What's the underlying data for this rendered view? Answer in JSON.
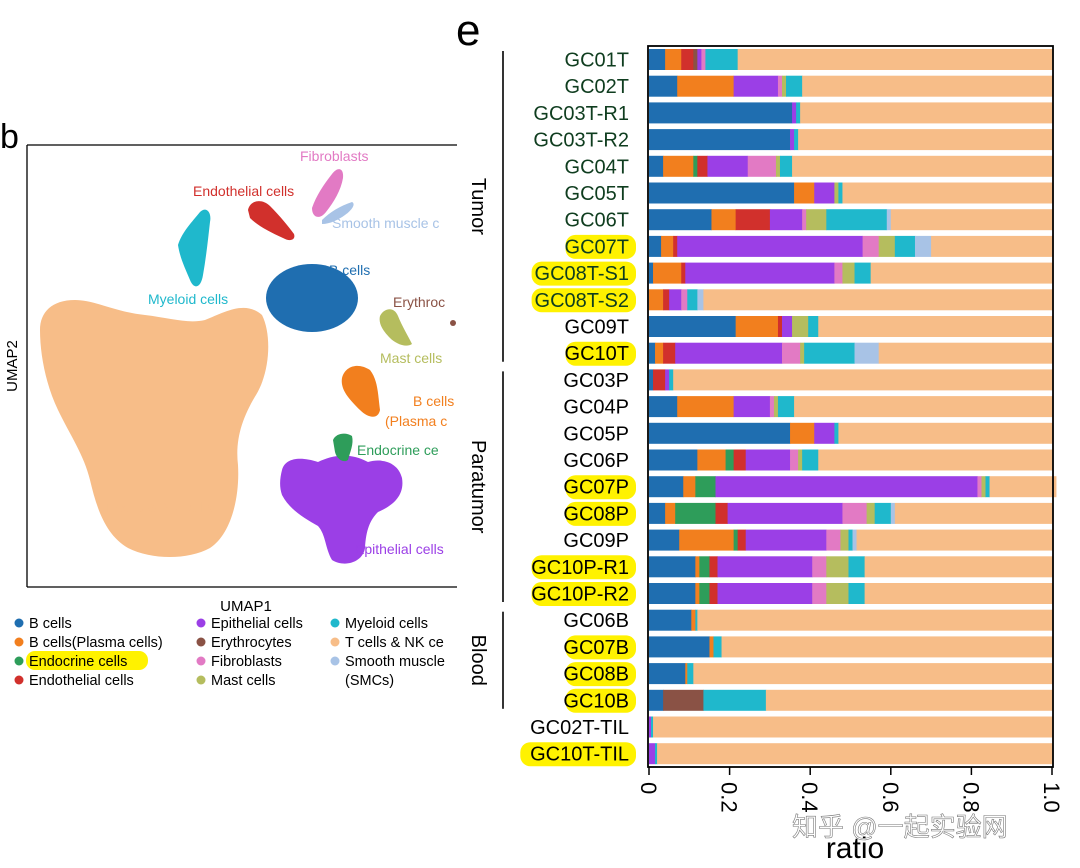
{
  "colors": {
    "b_cells": "#1f6eb0",
    "plasma": "#f27f1e",
    "endocrine": "#2e9d5a",
    "endothelial": "#d1302c",
    "epithelial": "#9b3fe6",
    "erythrocytes": "#8a5245",
    "fibroblasts": "#e27ac4",
    "mast": "#b5bd5e",
    "myeloid": "#1fb8cc",
    "tnk": "#f7bd88",
    "smc": "#a8c3e6",
    "highlight": "#fff200",
    "label_dark_green": "#0f3d1f"
  },
  "panel_d": {
    "label": "b",
    "xlabel": "UMAP1",
    "ylabel": "UMAP2",
    "cluster_labels": {
      "fibroblasts": "Fibroblasts",
      "endothelial": "Endothelial cells",
      "smc": "Smooth muscle c",
      "b_cells": "B cells",
      "myeloid": "Myeloid cells",
      "erythro": "Erythroc",
      "mast": "Mast cells",
      "plasma_1": "B cells",
      "plasma_2": "(Plasma c",
      "endocrine": "Endocrine ce",
      "tnk": "T cells & NK cells",
      "epithelial": "Epithelial cells"
    },
    "legend": [
      {
        "label": "B cells",
        "color": "#1f6eb0"
      },
      {
        "label": "B cells(Plasma cells)",
        "color": "#f27f1e"
      },
      {
        "label": "Endocrine cells",
        "color": "#2e9d5a",
        "highlight": true
      },
      {
        "label": "Endothelial cells",
        "color": "#d1302c"
      },
      {
        "label": "Epithelial cells",
        "color": "#9b3fe6"
      },
      {
        "label": "Erythrocytes",
        "color": "#8a5245"
      },
      {
        "label": "Fibroblasts",
        "color": "#e27ac4"
      },
      {
        "label": "Mast cells",
        "color": "#b5bd5e"
      },
      {
        "label": "Myeloid cells",
        "color": "#1fb8cc"
      },
      {
        "label": "T cells & NK ce",
        "color": "#f7bd88"
      },
      {
        "label": "Smooth muscle",
        "color": "#a8c3e6"
      },
      {
        "label": "(SMCs)",
        "color": null
      }
    ]
  },
  "chart_data": {
    "type": "bar",
    "orientation": "horizontal",
    "stacked": true,
    "panel_label": "e",
    "xlabel": "ratio",
    "xlim": [
      0,
      1.0
    ],
    "xticks": [
      "0",
      "0.2",
      "0.4",
      "0.6",
      "0.8",
      "1.0"
    ],
    "series_order": [
      "B cells",
      "B cells(Plasma cells)",
      "Endocrine cells",
      "Endothelial cells",
      "Erythrocytes",
      "Epithelial cells",
      "Fibroblasts",
      "Mast cells",
      "Myeloid cells",
      "Smooth muscle cells (SMCs)",
      "T cells & NK cells"
    ],
    "groups": [
      {
        "name": "Tumor",
        "first": 0,
        "last": 11
      },
      {
        "name": "Paratumor",
        "first": 12,
        "last": 20
      },
      {
        "name": "Blood",
        "first": 21,
        "last": 24
      }
    ],
    "categories": [
      {
        "label": "GC01T",
        "highlight": false,
        "dark": true,
        "values": [
          0.04,
          0.04,
          0.0,
          0.03,
          0.01,
          0.01,
          0.01,
          0.0,
          0.08,
          0.0,
          0.78
        ]
      },
      {
        "label": "GC02T",
        "highlight": false,
        "dark": true,
        "values": [
          0.07,
          0.14,
          0.0,
          0.0,
          0.0,
          0.11,
          0.01,
          0.01,
          0.04,
          0.0,
          0.62
        ]
      },
      {
        "label": "GC03T-R1",
        "highlight": false,
        "dark": true,
        "values": [
          0.355,
          0.0,
          0.0,
          0.0,
          0.0,
          0.01,
          0.0,
          0.0,
          0.01,
          0.0,
          0.625
        ]
      },
      {
        "label": "GC03T-R2",
        "highlight": false,
        "dark": true,
        "values": [
          0.35,
          0.0,
          0.0,
          0.0,
          0.0,
          0.01,
          0.0,
          0.0,
          0.01,
          0.0,
          0.63
        ]
      },
      {
        "label": "GC04T",
        "highlight": false,
        "dark": true,
        "values": [
          0.035,
          0.075,
          0.01,
          0.025,
          0.0,
          0.1,
          0.07,
          0.01,
          0.03,
          0.0,
          0.645
        ]
      },
      {
        "label": "GC05T",
        "highlight": false,
        "dark": true,
        "values": [
          0.36,
          0.05,
          0.0,
          0.0,
          0.0,
          0.05,
          0.0,
          0.01,
          0.01,
          0.0,
          0.52
        ]
      },
      {
        "label": "GC06T",
        "highlight": false,
        "dark": true,
        "values": [
          0.155,
          0.06,
          0.0,
          0.085,
          0.0,
          0.08,
          0.01,
          0.05,
          0.15,
          0.01,
          0.4
        ]
      },
      {
        "label": "GC07T",
        "highlight": true,
        "dark": true,
        "values": [
          0.03,
          0.03,
          0.0,
          0.01,
          0.0,
          0.46,
          0.04,
          0.04,
          0.05,
          0.04,
          0.3
        ]
      },
      {
        "label": "GC08T-S1",
        "highlight": true,
        "dark": true,
        "values": [
          0.01,
          0.07,
          0.0,
          0.01,
          0.0,
          0.37,
          0.02,
          0.03,
          0.04,
          0.0,
          0.45
        ]
      },
      {
        "label": "GC08T-S2",
        "highlight": true,
        "dark": true,
        "values": [
          0.0,
          0.035,
          0.0,
          0.015,
          0.0,
          0.03,
          0.015,
          0.0,
          0.025,
          0.015,
          0.865
        ]
      },
      {
        "label": "GC09T",
        "highlight": false,
        "dark": false,
        "values": [
          0.215,
          0.105,
          0.0,
          0.01,
          0.0,
          0.025,
          0.0,
          0.04,
          0.025,
          0.0,
          0.58
        ]
      },
      {
        "label": "GC10T",
        "highlight": true,
        "dark": false,
        "values": [
          0.015,
          0.02,
          0.0,
          0.03,
          0.0,
          0.265,
          0.045,
          0.01,
          0.125,
          0.06,
          0.43
        ]
      },
      {
        "label": "GC03P",
        "highlight": false,
        "dark": false,
        "values": [
          0.01,
          0.0,
          0.0,
          0.03,
          0.0,
          0.01,
          0.0,
          0.0,
          0.01,
          0.0,
          0.94
        ]
      },
      {
        "label": "GC04P",
        "highlight": false,
        "dark": false,
        "values": [
          0.07,
          0.14,
          0.0,
          0.0,
          0.0,
          0.09,
          0.01,
          0.01,
          0.04,
          0.0,
          0.64
        ]
      },
      {
        "label": "GC05P",
        "highlight": false,
        "dark": false,
        "values": [
          0.35,
          0.06,
          0.0,
          0.0,
          0.0,
          0.05,
          0.0,
          0.0,
          0.01,
          0.0,
          0.53
        ]
      },
      {
        "label": "GC06P",
        "highlight": false,
        "dark": false,
        "values": [
          0.12,
          0.07,
          0.02,
          0.03,
          0.0,
          0.11,
          0.02,
          0.01,
          0.04,
          0.0,
          0.58
        ]
      },
      {
        "label": "GC07P",
        "highlight": true,
        "dark": false,
        "values": [
          0.085,
          0.03,
          0.05,
          0.0,
          0.0,
          0.65,
          0.01,
          0.01,
          0.01,
          0.0,
          0.165
        ]
      },
      {
        "label": "GC08P",
        "highlight": true,
        "dark": false,
        "values": [
          0.04,
          0.025,
          0.1,
          0.03,
          0.0,
          0.285,
          0.06,
          0.02,
          0.04,
          0.01,
          0.39
        ]
      },
      {
        "label": "GC09P",
        "highlight": false,
        "dark": false,
        "values": [
          0.075,
          0.135,
          0.01,
          0.02,
          0.0,
          0.2,
          0.035,
          0.02,
          0.01,
          0.01,
          0.485
        ]
      },
      {
        "label": "GC10P-R1",
        "highlight": true,
        "dark": false,
        "values": [
          0.115,
          0.01,
          0.025,
          0.02,
          0.0,
          0.235,
          0.035,
          0.055,
          0.04,
          0.0,
          0.465
        ]
      },
      {
        "label": "GC10P-R2",
        "highlight": true,
        "dark": false,
        "values": [
          0.115,
          0.01,
          0.025,
          0.02,
          0.0,
          0.235,
          0.035,
          0.055,
          0.04,
          0.0,
          0.465
        ]
      },
      {
        "label": "GC06B",
        "highlight": false,
        "dark": false,
        "values": [
          0.105,
          0.01,
          0.0,
          0.0,
          0.0,
          0.0,
          0.0,
          0.0,
          0.005,
          0.0,
          0.88
        ]
      },
      {
        "label": "GC07B",
        "highlight": true,
        "dark": false,
        "values": [
          0.15,
          0.01,
          0.0,
          0.0,
          0.0,
          0.0,
          0.0,
          0.0,
          0.02,
          0.0,
          0.82
        ]
      },
      {
        "label": "GC08B",
        "highlight": true,
        "dark": false,
        "values": [
          0.09,
          0.005,
          0.0,
          0.0,
          0.0,
          0.0,
          0.0,
          0.0,
          0.015,
          0.0,
          0.89
        ]
      },
      {
        "label": "GC10B",
        "highlight": true,
        "dark": false,
        "values": [
          0.035,
          0.0,
          0.0,
          0.0,
          0.1,
          0.0,
          0.0,
          0.0,
          0.155,
          0.0,
          0.71
        ]
      },
      {
        "label": "GC02T-TIL",
        "highlight": false,
        "dark": false,
        "values": [
          0.0,
          0.0,
          0.0,
          0.0,
          0.0,
          0.005,
          0.0,
          0.0,
          0.005,
          0.0,
          0.99
        ]
      },
      {
        "label": "GC10T-TIL",
        "highlight": true,
        "dark": false,
        "values": [
          0.0,
          0.0,
          0.0,
          0.0,
          0.0,
          0.015,
          0.0,
          0.0,
          0.005,
          0.0,
          0.98
        ]
      }
    ]
  },
  "watermark": "知乎 @一起实验网"
}
